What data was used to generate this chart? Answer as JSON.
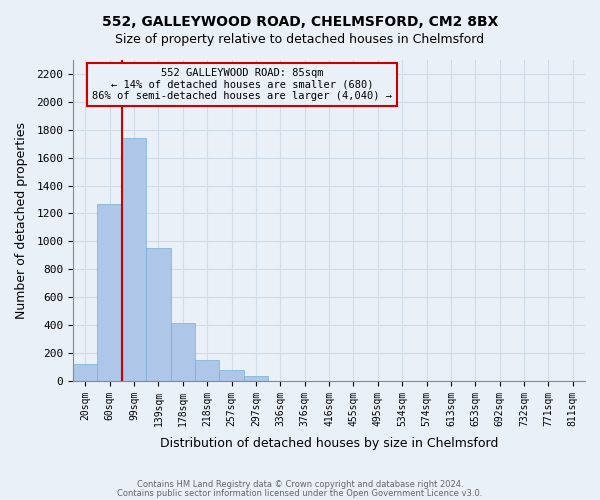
{
  "title_line1": "552, GALLEYWOOD ROAD, CHELMSFORD, CM2 8BX",
  "title_line2": "Size of property relative to detached houses in Chelmsford",
  "xlabel": "Distribution of detached houses by size in Chelmsford",
  "ylabel": "Number of detached properties",
  "bar_values": [
    120,
    1270,
    1740,
    950,
    415,
    150,
    75,
    35,
    0,
    0,
    0,
    0,
    0,
    0,
    0,
    0,
    0,
    0,
    0,
    0,
    0
  ],
  "bar_labels": [
    "20sqm",
    "60sqm",
    "99sqm",
    "139sqm",
    "178sqm",
    "218sqm",
    "257sqm",
    "297sqm",
    "336sqm",
    "376sqm",
    "416sqm",
    "455sqm",
    "495sqm",
    "534sqm",
    "574sqm",
    "613sqm",
    "653sqm",
    "692sqm",
    "732sqm",
    "771sqm",
    "811sqm"
  ],
  "bar_color": "#aec6e8",
  "bar_edge_color": "#7aafd4",
  "vline_x": 1.5,
  "vline_color": "#cc0000",
  "annotation_box_text": "552 GALLEYWOOD ROAD: 85sqm\n← 14% of detached houses are smaller (680)\n86% of semi-detached houses are larger (4,040) →",
  "annotation_box_color": "#cc0000",
  "ylim": [
    0,
    2300
  ],
  "yticks": [
    0,
    200,
    400,
    600,
    800,
    1000,
    1200,
    1400,
    1600,
    1800,
    2000,
    2200
  ],
  "grid_color": "#d0dce8",
  "bg_color": "#eaf0f8",
  "footer_line1": "Contains HM Land Registry data © Crown copyright and database right 2024.",
  "footer_line2": "Contains public sector information licensed under the Open Government Licence v3.0."
}
